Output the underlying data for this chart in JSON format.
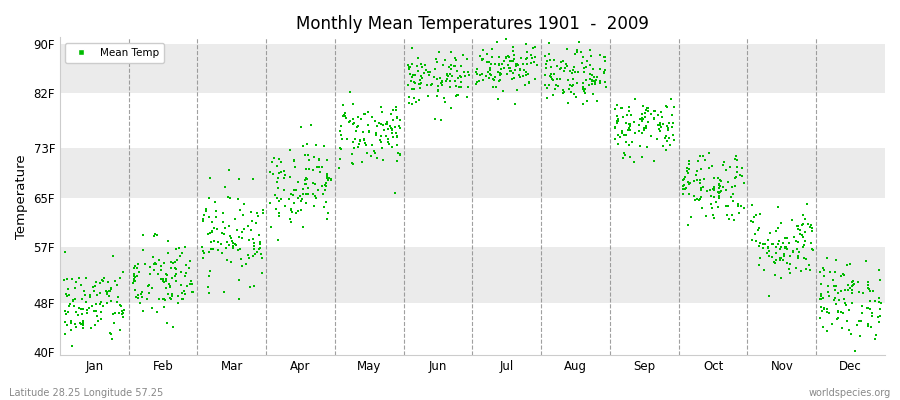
{
  "title": "Monthly Mean Temperatures 1901  -  2009",
  "ylabel": "Temperature",
  "bottom_left": "Latitude 28.25 Longitude 57.25",
  "bottom_right": "worldspecies.org",
  "legend_label": "Mean Temp",
  "dot_color": "#00bb00",
  "background_color": "#ffffff",
  "band_colors": [
    "#ffffff",
    "#ebebeb"
  ],
  "yticks": [
    40,
    48,
    57,
    65,
    73,
    82,
    90
  ],
  "ytick_labels": [
    "40F",
    "48F",
    "57F",
    "65F",
    "73F",
    "82F",
    "90F"
  ],
  "ylim": [
    39.5,
    91
  ],
  "months": [
    "Jan",
    "Feb",
    "Mar",
    "Apr",
    "May",
    "Jun",
    "Jul",
    "Aug",
    "Sep",
    "Oct",
    "Nov",
    "Dec"
  ],
  "n_years": 109,
  "mean_temps_F": [
    47.5,
    51.5,
    59.0,
    67.5,
    75.5,
    84.0,
    86.5,
    84.5,
    76.5,
    67.0,
    57.5,
    48.5
  ],
  "std_temps_F": [
    3.2,
    3.5,
    3.8,
    3.5,
    2.8,
    2.2,
    2.2,
    2.2,
    2.5,
    3.0,
    3.0,
    3.2
  ],
  "seed": 42,
  "dot_size": 2.5,
  "figsize": [
    9.0,
    4.0
  ],
  "dpi": 100
}
